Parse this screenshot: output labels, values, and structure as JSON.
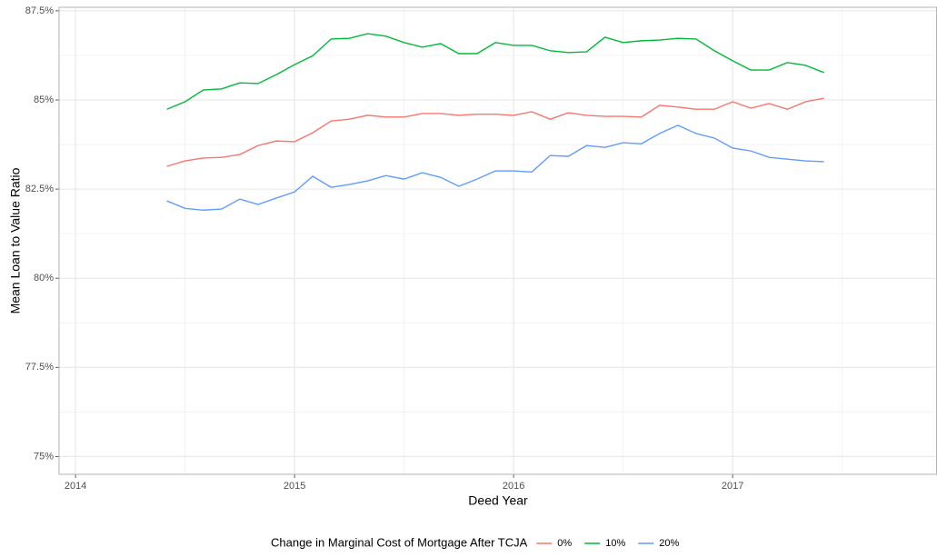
{
  "chart_data": {
    "type": "line",
    "x_label": "Deed Year",
    "y_label": "Mean Loan to Value Ratio",
    "legend_title": "Change in Marginal Cost of Mortgage After TCJA",
    "legend_position": "bottom",
    "grid": true,
    "x": [
      2014.417,
      2014.5,
      2014.583,
      2014.667,
      2014.75,
      2014.833,
      2014.917,
      2015,
      2015.083,
      2015.167,
      2015.25,
      2015.333,
      2015.417,
      2015.5,
      2015.583,
      2015.667,
      2015.75,
      2015.833,
      2015.917,
      2016,
      2016.083,
      2016.167,
      2016.25,
      2016.333,
      2016.417,
      2016.5,
      2016.583,
      2016.667,
      2016.75,
      2016.833,
      2016.917,
      2017,
      2017.083,
      2017.167,
      2017.25,
      2017.333,
      2017.417
    ],
    "series": [
      {
        "name": "0%",
        "color": "#f8766d",
        "values": [
          83.14,
          83.29,
          83.37,
          83.39,
          83.47,
          83.72,
          83.85,
          83.83,
          84.08,
          84.41,
          84.46,
          84.57,
          84.52,
          84.52,
          84.62,
          84.62,
          84.57,
          84.6,
          84.6,
          84.57,
          84.67,
          84.46,
          84.64,
          84.57,
          84.54,
          84.54,
          84.52,
          84.85,
          84.8,
          84.74,
          84.74,
          84.95,
          84.77,
          84.9,
          84.74,
          84.95,
          85.05
        ]
      },
      {
        "name": "10%",
        "color": "#00ba38",
        "values": [
          84.74,
          84.95,
          85.28,
          85.31,
          85.48,
          85.46,
          85.71,
          85.99,
          86.24,
          86.71,
          86.73,
          86.86,
          86.79,
          86.61,
          86.48,
          86.58,
          86.3,
          86.3,
          86.61,
          86.53,
          86.53,
          86.38,
          86.33,
          86.35,
          86.76,
          86.61,
          86.66,
          86.68,
          86.73,
          86.71,
          86.38,
          86.1,
          85.84,
          85.84,
          86.05,
          85.97,
          85.77
        ]
      },
      {
        "name": "20%",
        "color": "#619cff",
        "values": [
          82.17,
          81.96,
          81.91,
          81.94,
          82.22,
          82.07,
          82.25,
          82.42,
          82.86,
          82.55,
          82.63,
          82.73,
          82.88,
          82.78,
          82.96,
          82.83,
          82.58,
          82.78,
          83.01,
          83.01,
          82.98,
          83.44,
          83.42,
          83.72,
          83.67,
          83.8,
          83.77,
          84.06,
          84.29,
          84.06,
          83.93,
          83.65,
          83.57,
          83.39,
          83.34,
          83.29,
          83.27
        ]
      }
    ],
    "xlim": [
      2013.925,
      2017.933
    ],
    "xticks": [
      2014,
      2015,
      2016,
      2017
    ],
    "ylim": [
      74.5,
      87.6
    ],
    "yticks": [
      {
        "value": 75,
        "label": "75%"
      },
      {
        "value": 77.5,
        "label": "77.5%"
      },
      {
        "value": 80,
        "label": "80%"
      },
      {
        "value": 82.5,
        "label": "82.5%"
      },
      {
        "value": 85,
        "label": "85%"
      },
      {
        "value": 87.5,
        "label": "87.5%"
      }
    ]
  }
}
